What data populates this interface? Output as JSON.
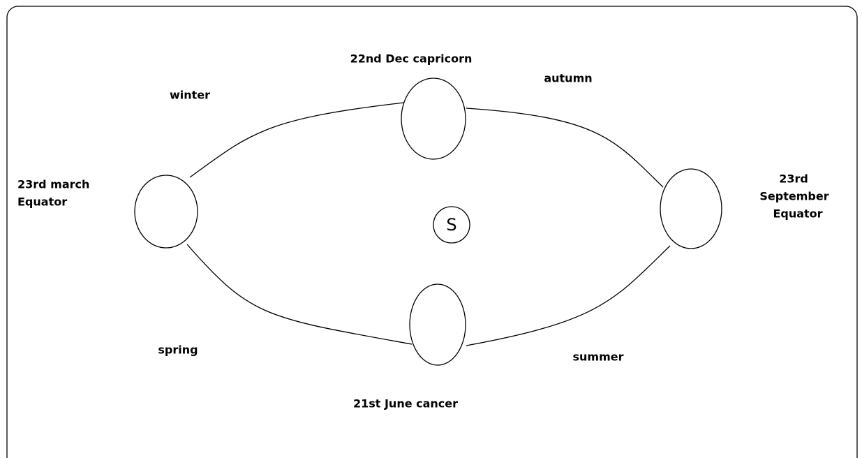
{
  "nodes": [
    {
      "id": "dec",
      "label": "22nd Dec capricorn"
    },
    {
      "id": "march",
      "label": [
        "23rd march",
        "Equator"
      ]
    },
    {
      "id": "september",
      "label": [
        "23rd",
        "September",
        "Equator"
      ]
    },
    {
      "id": "june",
      "label": "21st June cancer"
    }
  ],
  "sun": {
    "label": "S"
  },
  "seasons": [
    "winter",
    "autumn",
    "spring",
    "summer"
  ]
}
